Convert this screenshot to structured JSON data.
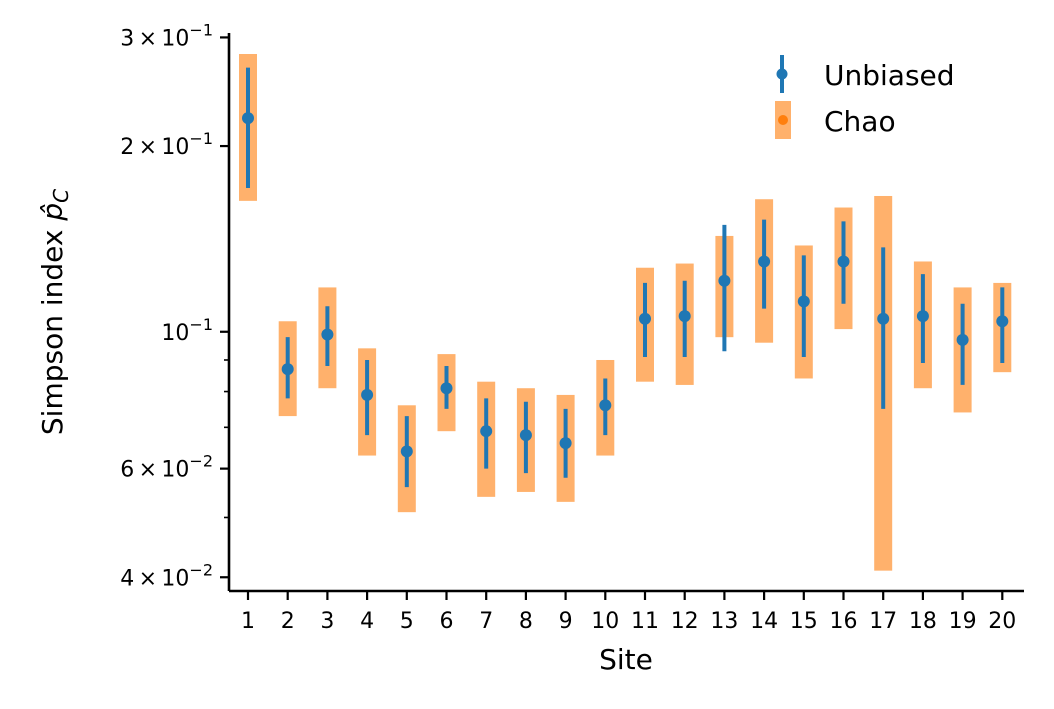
{
  "chart_data": {
    "type": "scatter",
    "title": "",
    "xlabel": "Site",
    "ylabel_prefix": "Simpson index ",
    "ylabel_symbol": "p̂",
    "ylabel_subscript": "C",
    "yscale": "log",
    "ylim": [
      0.038,
      0.305
    ],
    "y_major_ticks": [
      {
        "value": 0.04,
        "mantissa": "4",
        "exponent": "−2"
      },
      {
        "value": 0.06,
        "mantissa": "6",
        "exponent": "−2"
      },
      {
        "value": 0.1,
        "mantissa": "",
        "exponent": "−1"
      },
      {
        "value": 0.2,
        "mantissa": "2",
        "exponent": "−1"
      },
      {
        "value": 0.3,
        "mantissa": "3",
        "exponent": "−1"
      }
    ],
    "y_minor_ticks": [
      0.05,
      0.07,
      0.08,
      0.09
    ],
    "categories": [
      "1",
      "2",
      "3",
      "4",
      "5",
      "6",
      "7",
      "8",
      "9",
      "10",
      "11",
      "12",
      "13",
      "14",
      "15",
      "16",
      "17",
      "18",
      "19",
      "20"
    ],
    "legend_position": "upper-right",
    "colors": {
      "unbiased": "#1f77b4",
      "chao": "#ffa95c",
      "chao_marker": "#ff7f0e"
    },
    "series": [
      {
        "name": "Unbiased",
        "values": [
          0.222,
          0.087,
          0.099,
          0.079,
          0.064,
          0.081,
          0.069,
          0.068,
          0.066,
          0.076,
          0.105,
          0.106,
          0.121,
          0.13,
          0.112,
          0.13,
          0.105,
          0.106,
          0.097,
          0.104
        ],
        "lower": [
          0.171,
          0.078,
          0.088,
          0.068,
          0.056,
          0.075,
          0.06,
          0.059,
          0.058,
          0.068,
          0.091,
          0.091,
          0.093,
          0.109,
          0.091,
          0.111,
          0.075,
          0.089,
          0.082,
          0.089
        ],
        "upper": [
          0.268,
          0.098,
          0.11,
          0.09,
          0.073,
          0.088,
          0.078,
          0.077,
          0.075,
          0.084,
          0.12,
          0.121,
          0.149,
          0.152,
          0.133,
          0.151,
          0.137,
          0.124,
          0.111,
          0.118
        ]
      },
      {
        "name": "Chao",
        "values": [
          0.222,
          0.087,
          0.099,
          0.079,
          0.064,
          0.081,
          0.069,
          0.068,
          0.066,
          0.076,
          0.105,
          0.106,
          0.121,
          0.13,
          0.112,
          0.13,
          0.105,
          0.106,
          0.097,
          0.104
        ],
        "lower": [
          0.163,
          0.073,
          0.081,
          0.063,
          0.051,
          0.069,
          0.054,
          0.055,
          0.053,
          0.063,
          0.083,
          0.082,
          0.098,
          0.096,
          0.084,
          0.101,
          0.041,
          0.081,
          0.074,
          0.086
        ],
        "upper": [
          0.282,
          0.104,
          0.118,
          0.094,
          0.076,
          0.092,
          0.083,
          0.081,
          0.079,
          0.09,
          0.127,
          0.129,
          0.143,
          0.164,
          0.138,
          0.159,
          0.166,
          0.13,
          0.118,
          0.12
        ]
      }
    ]
  }
}
